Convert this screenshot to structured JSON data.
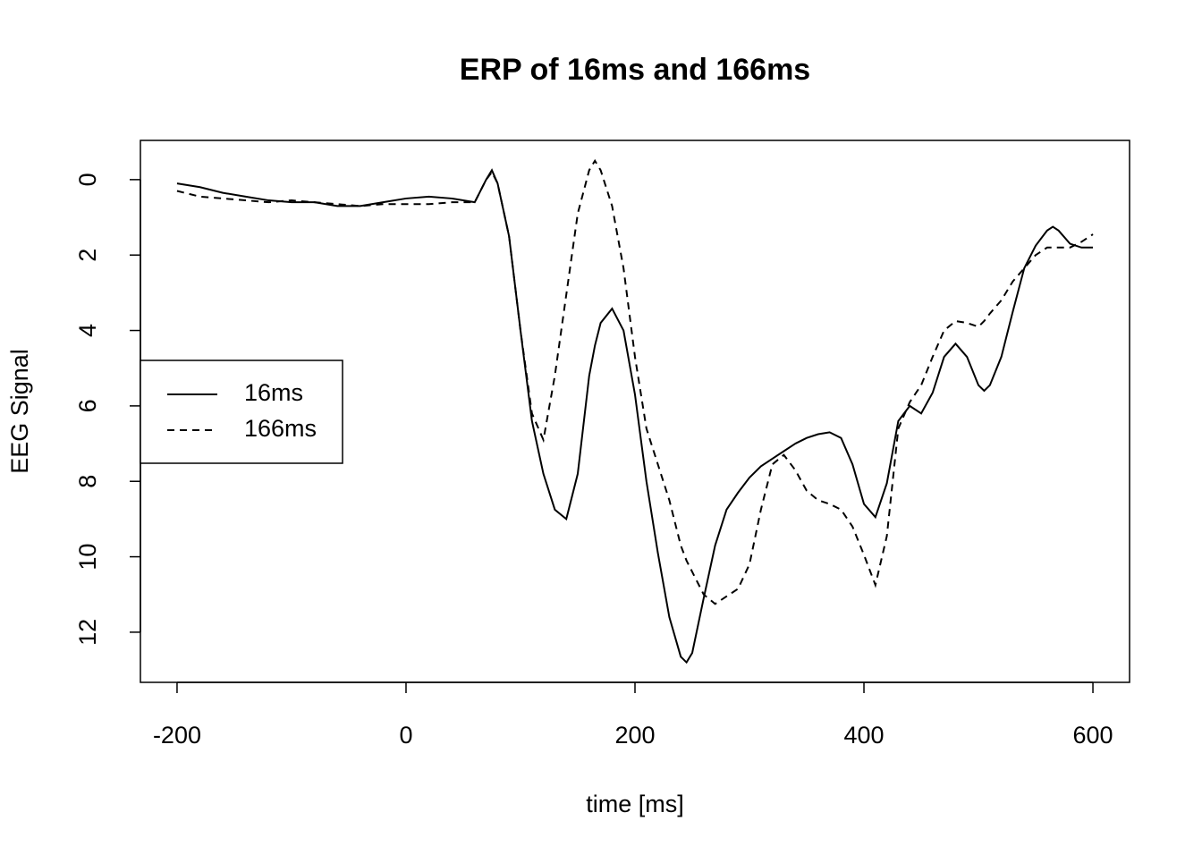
{
  "chart_data": {
    "type": "line",
    "title": "ERP of 16ms and 166ms",
    "xlabel": "time [ms]",
    "ylabel": "EEG Signal",
    "x": [
      -200,
      -180,
      -160,
      -140,
      -120,
      -100,
      -80,
      -60,
      -40,
      -20,
      0,
      20,
      40,
      60,
      70,
      75,
      80,
      90,
      100,
      110,
      120,
      130,
      140,
      150,
      160,
      165,
      170,
      180,
      190,
      200,
      210,
      220,
      230,
      240,
      245,
      250,
      260,
      270,
      280,
      290,
      300,
      310,
      320,
      330,
      340,
      350,
      360,
      370,
      380,
      390,
      400,
      410,
      420,
      430,
      440,
      450,
      460,
      470,
      480,
      490,
      500,
      505,
      510,
      520,
      530,
      540,
      550,
      560,
      565,
      570,
      580,
      590,
      600
    ],
    "series": [
      {
        "name": "16ms",
        "color": "#000000",
        "linestyle": "solid",
        "values": [
          0.1,
          0.2,
          0.35,
          0.45,
          0.55,
          0.6,
          0.6,
          0.7,
          0.7,
          0.6,
          0.5,
          0.45,
          0.5,
          0.6,
          0.0,
          -0.25,
          0.1,
          1.5,
          4.0,
          6.4,
          7.8,
          8.75,
          9.0,
          7.8,
          5.2,
          4.4,
          3.8,
          3.42,
          4.0,
          5.7,
          8.0,
          9.9,
          11.6,
          12.65,
          12.8,
          12.55,
          11.1,
          9.7,
          8.75,
          8.3,
          7.9,
          7.6,
          7.4,
          7.2,
          7.0,
          6.85,
          6.75,
          6.7,
          6.85,
          7.55,
          8.6,
          8.95,
          8.05,
          6.4,
          6.0,
          6.2,
          5.65,
          4.7,
          4.35,
          4.7,
          5.45,
          5.6,
          5.45,
          4.7,
          3.5,
          2.35,
          1.75,
          1.35,
          1.25,
          1.35,
          1.7,
          1.8,
          1.8
        ]
      },
      {
        "name": "166ms",
        "color": "#000000",
        "linestyle": "dashed",
        "values": [
          0.3,
          0.45,
          0.5,
          0.55,
          0.6,
          0.55,
          0.6,
          0.65,
          0.7,
          0.65,
          0.65,
          0.65,
          0.6,
          0.6,
          0.0,
          -0.2,
          0.1,
          1.5,
          4.0,
          6.2,
          6.9,
          5.2,
          3.05,
          0.9,
          -0.25,
          -0.5,
          -0.25,
          0.7,
          2.35,
          4.7,
          6.6,
          7.55,
          8.5,
          9.7,
          10.1,
          10.4,
          11.0,
          11.25,
          11.05,
          10.85,
          10.2,
          8.75,
          7.55,
          7.3,
          7.7,
          8.25,
          8.5,
          8.6,
          8.75,
          9.2,
          9.95,
          10.75,
          9.45,
          6.6,
          5.9,
          5.45,
          4.7,
          4.0,
          3.75,
          3.8,
          3.9,
          3.75,
          3.55,
          3.2,
          2.7,
          2.35,
          2.0,
          1.8,
          1.8,
          1.8,
          1.8,
          1.65,
          1.45
        ]
      }
    ],
    "xlim": [
      -232,
      632
    ],
    "xticks": [
      -200,
      0,
      200,
      400,
      600
    ],
    "ylim": [
      13.33,
      -1.04
    ],
    "yticks": [
      0,
      2,
      4,
      6,
      8,
      10,
      12
    ],
    "legend": "left",
    "grid": false
  }
}
